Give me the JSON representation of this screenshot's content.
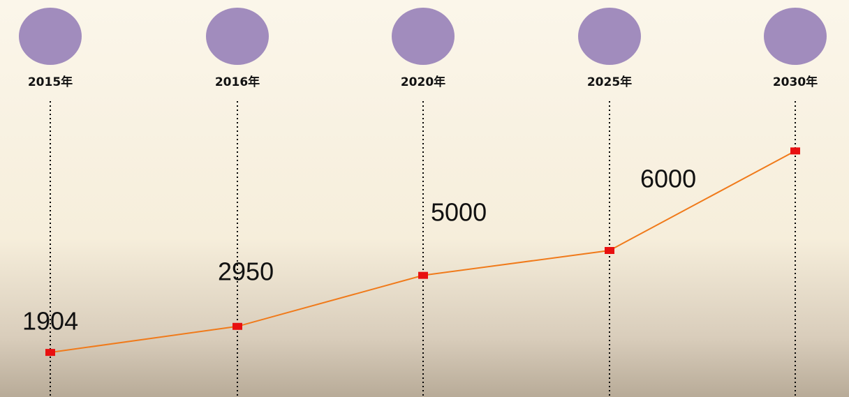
{
  "chart_data": {
    "type": "line",
    "categories": [
      "2015年",
      "2016年",
      "2020年",
      "2025年",
      "2030年"
    ],
    "values": [
      1904,
      2950,
      5000,
      6000,
      10000
    ],
    "value_labels": [
      "1904",
      "2950",
      "5000",
      "6000",
      null
    ],
    "color": "#f07a1a",
    "marker_color": "#e81010",
    "header_color": "#a18cbd",
    "ylim": [
      0,
      15000
    ]
  }
}
